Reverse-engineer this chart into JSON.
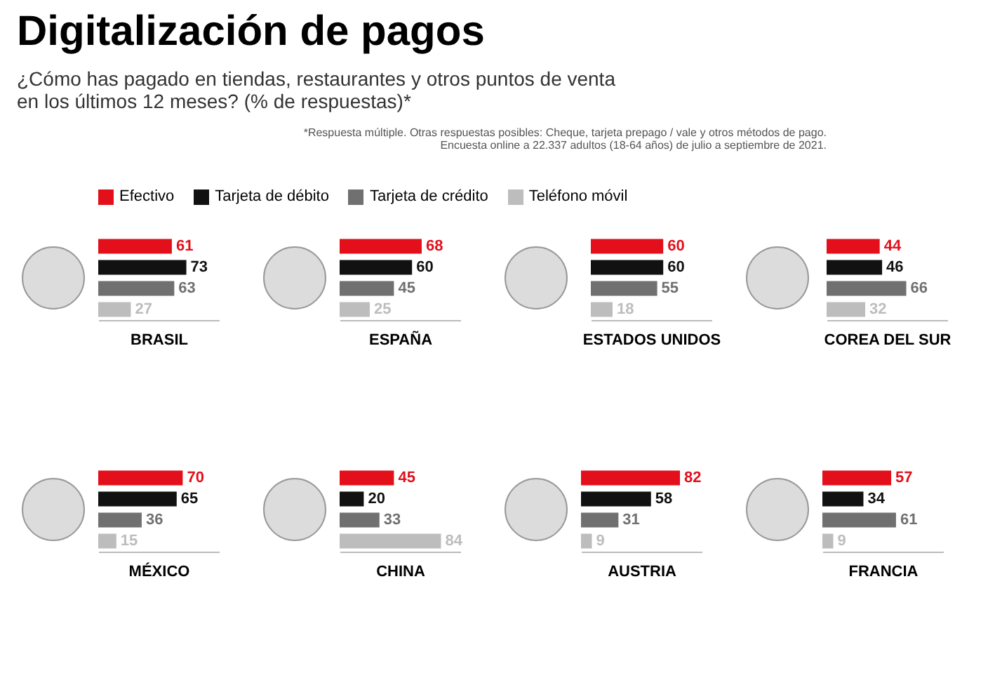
{
  "chart_data": [
    {
      "type": "other",
      "title": "Digitalización de pagos",
      "subtitle": "¿Cómo has pagado en tiendas, restaurantes y otros puntos de venta en los últimos 12 meses? (% de respuestas)*",
      "annotations": [
        "*Respuesta múltiple. Otras respuestas posibles: Cheque, tarjeta prepago / vale y otros métodos de pago.",
        "Encuesta online a 22.337 adultos (18-64 años) de julio a septiembre de 2021."
      ],
      "categories": [
        "Efectivo",
        "Tarjeta de débito",
        "Tarjeta de crédito",
        "Teléfono móvil"
      ],
      "colors": [
        "#e3101b",
        "#111111",
        "#707070",
        "#bdbdbd"
      ]
    },
    {
      "type": "bar",
      "orientation": "horizontal",
      "xlabel": "BRASIL",
      "categories": [
        null,
        null,
        null,
        null
      ],
      "values": [
        61,
        73,
        63,
        27
      ],
      "colors": [
        "#e3101b",
        "#111111",
        "#707070",
        "#bdbdbd"
      ],
      "xlim": [
        0,
        100
      ],
      "tick_labels": false,
      "data_labels": true
    },
    {
      "type": "bar",
      "orientation": "horizontal",
      "xlabel": "ESPAÑA",
      "categories": [
        null,
        null,
        null,
        null
      ],
      "values": [
        68,
        60,
        45,
        25
      ],
      "colors": [
        "#e3101b",
        "#111111",
        "#707070",
        "#bdbdbd"
      ],
      "xlim": [
        0,
        100
      ],
      "tick_labels": false,
      "data_labels": true
    },
    {
      "type": "bar",
      "orientation": "horizontal",
      "xlabel": "ESTADOS UNIDOS",
      "categories": [
        null,
        null,
        null,
        null
      ],
      "values": [
        60,
        60,
        55,
        18
      ],
      "colors": [
        "#e3101b",
        "#111111",
        "#707070",
        "#bdbdbd"
      ],
      "xlim": [
        0,
        100
      ],
      "tick_labels": false,
      "data_labels": true
    },
    {
      "type": "bar",
      "orientation": "horizontal",
      "xlabel": "COREA DEL SUR",
      "categories": [
        null,
        null,
        null,
        null
      ],
      "values": [
        44,
        46,
        66,
        32
      ],
      "colors": [
        "#e3101b",
        "#111111",
        "#707070",
        "#bdbdbd"
      ],
      "xlim": [
        0,
        100
      ],
      "tick_labels": false,
      "data_labels": true
    },
    {
      "type": "bar",
      "orientation": "horizontal",
      "xlabel": "MÉXICO",
      "categories": [
        null,
        null,
        null,
        null
      ],
      "values": [
        70,
        65,
        36,
        15
      ],
      "colors": [
        "#e3101b",
        "#111111",
        "#707070",
        "#bdbdbd"
      ],
      "xlim": [
        0,
        100
      ],
      "tick_labels": false,
      "data_labels": true
    },
    {
      "type": "bar",
      "orientation": "horizontal",
      "xlabel": "CHINA",
      "categories": [
        null,
        null,
        null,
        null
      ],
      "values": [
        45,
        20,
        33,
        84
      ],
      "colors": [
        "#e3101b",
        "#111111",
        "#707070",
        "#bdbdbd"
      ],
      "xlim": [
        0,
        100
      ],
      "tick_labels": false,
      "data_labels": true
    },
    {
      "type": "bar",
      "orientation": "horizontal",
      "xlabel": "AUSTRIA",
      "categories": [
        null,
        null,
        null,
        null
      ],
      "values": [
        82,
        58,
        31,
        9
      ],
      "colors": [
        "#e3101b",
        "#111111",
        "#707070",
        "#bdbdbd"
      ],
      "xlim": [
        0,
        100
      ],
      "tick_labels": false,
      "data_labels": true
    },
    {
      "type": "bar",
      "orientation": "horizontal",
      "xlabel": "FRANCIA",
      "categories": [
        null,
        null,
        null,
        null
      ],
      "values": [
        57,
        34,
        61,
        9
      ],
      "colors": [
        "#e3101b",
        "#111111",
        "#707070",
        "#bdbdbd"
      ],
      "xlim": [
        0,
        100
      ],
      "tick_labels": false,
      "data_labels": true
    }
  ]
}
